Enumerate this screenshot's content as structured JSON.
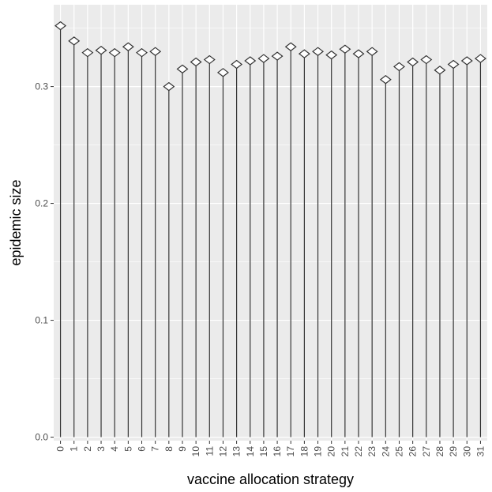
{
  "chart_data": {
    "type": "scatter",
    "style": "lollipop",
    "marker": "diamond",
    "xlabel": "vaccine allocation strategy",
    "ylabel": "epidemic size",
    "categories": [
      "0",
      "1",
      "2",
      "3",
      "4",
      "5",
      "6",
      "7",
      "8",
      "9",
      "10",
      "11",
      "12",
      "13",
      "14",
      "15",
      "16",
      "17",
      "18",
      "19",
      "20",
      "21",
      "22",
      "23",
      "24",
      "25",
      "26",
      "27",
      "28",
      "29",
      "30",
      "31"
    ],
    "values": [
      0.352,
      0.339,
      0.329,
      0.331,
      0.329,
      0.334,
      0.329,
      0.33,
      0.3,
      0.315,
      0.321,
      0.323,
      0.312,
      0.319,
      0.322,
      0.324,
      0.326,
      0.334,
      0.328,
      0.33,
      0.327,
      0.332,
      0.328,
      0.33,
      0.306,
      0.317,
      0.321,
      0.323,
      0.314,
      0.319,
      0.322,
      0.324
    ],
    "yticks": [
      "0.0",
      "0.1",
      "0.2",
      "0.3"
    ],
    "ylim": [
      -0.003,
      0.37
    ],
    "grid": true,
    "colors": {
      "panel": "#ebebeb",
      "grid": "#ffffff",
      "line": "#333333",
      "marker_fill": "#ffffff"
    }
  }
}
